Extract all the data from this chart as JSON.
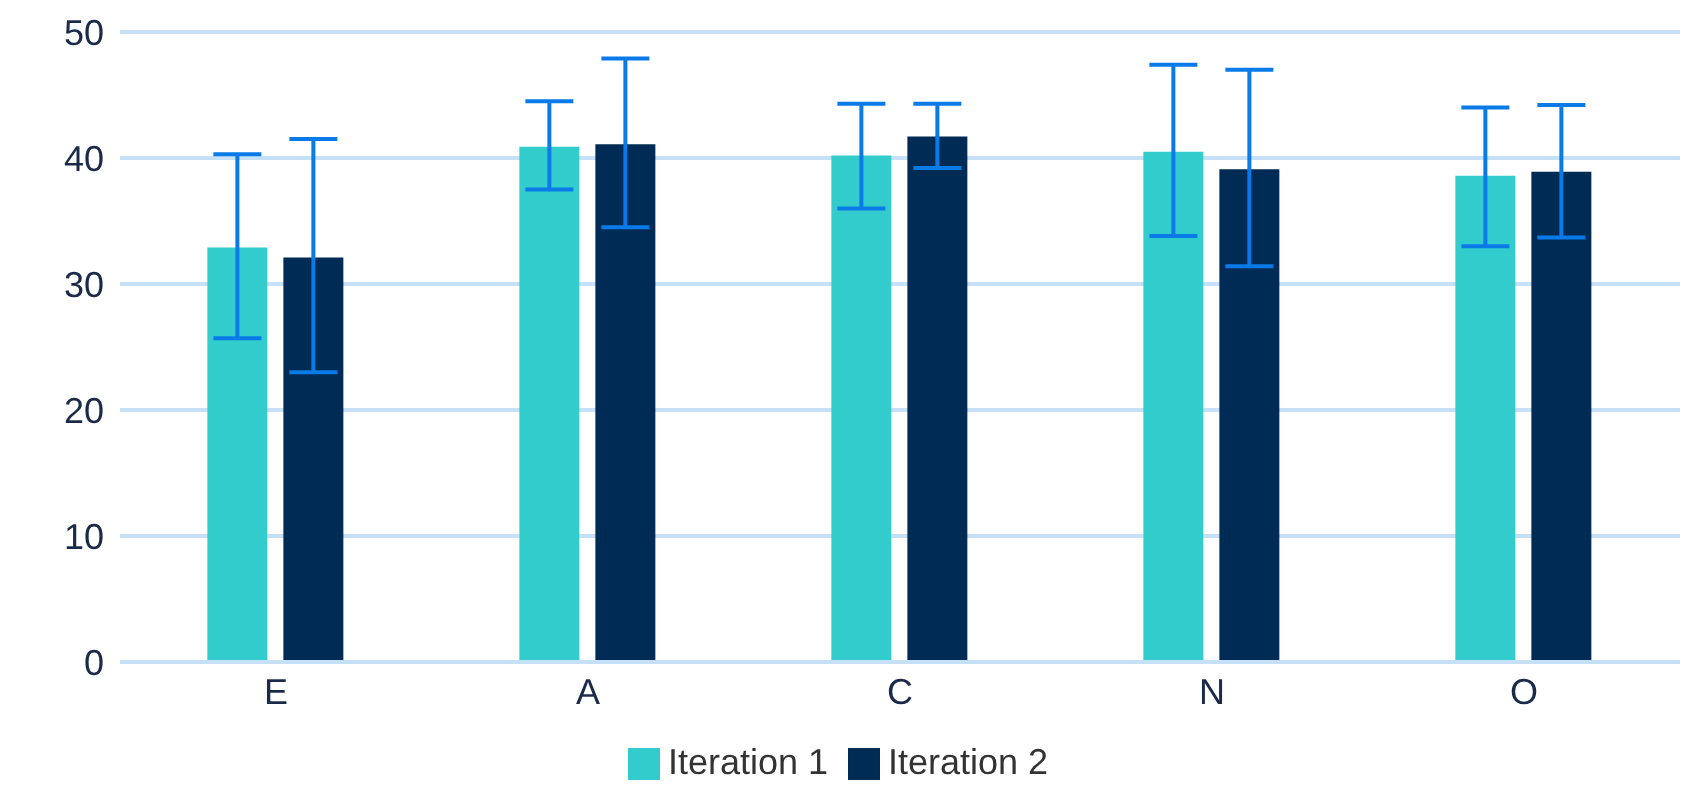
{
  "chart_data": {
    "type": "bar",
    "categories": [
      "E",
      "A",
      "C",
      "N",
      "O"
    ],
    "series": [
      {
        "name": "Iteration 1",
        "color": "#33cccc",
        "values": [
          32.9,
          40.9,
          40.2,
          40.5,
          38.6
        ],
        "errors": [
          [
            25.7,
            40.3
          ],
          [
            37.5,
            44.5
          ],
          [
            36.0,
            44.3
          ],
          [
            33.8,
            47.4
          ],
          [
            33.0,
            44.0
          ]
        ]
      },
      {
        "name": "Iteration 2",
        "color": "#002b55",
        "values": [
          32.1,
          41.1,
          41.7,
          39.1,
          38.9
        ],
        "errors": [
          [
            23.0,
            41.5
          ],
          [
            34.5,
            47.9
          ],
          [
            39.2,
            44.3
          ],
          [
            31.4,
            47.0
          ],
          [
            33.7,
            44.2
          ]
        ]
      }
    ],
    "ylim": [
      0,
      50
    ],
    "yticks": [
      0,
      10,
      20,
      30,
      40,
      50
    ],
    "grid": "y",
    "legend": "bottom"
  }
}
